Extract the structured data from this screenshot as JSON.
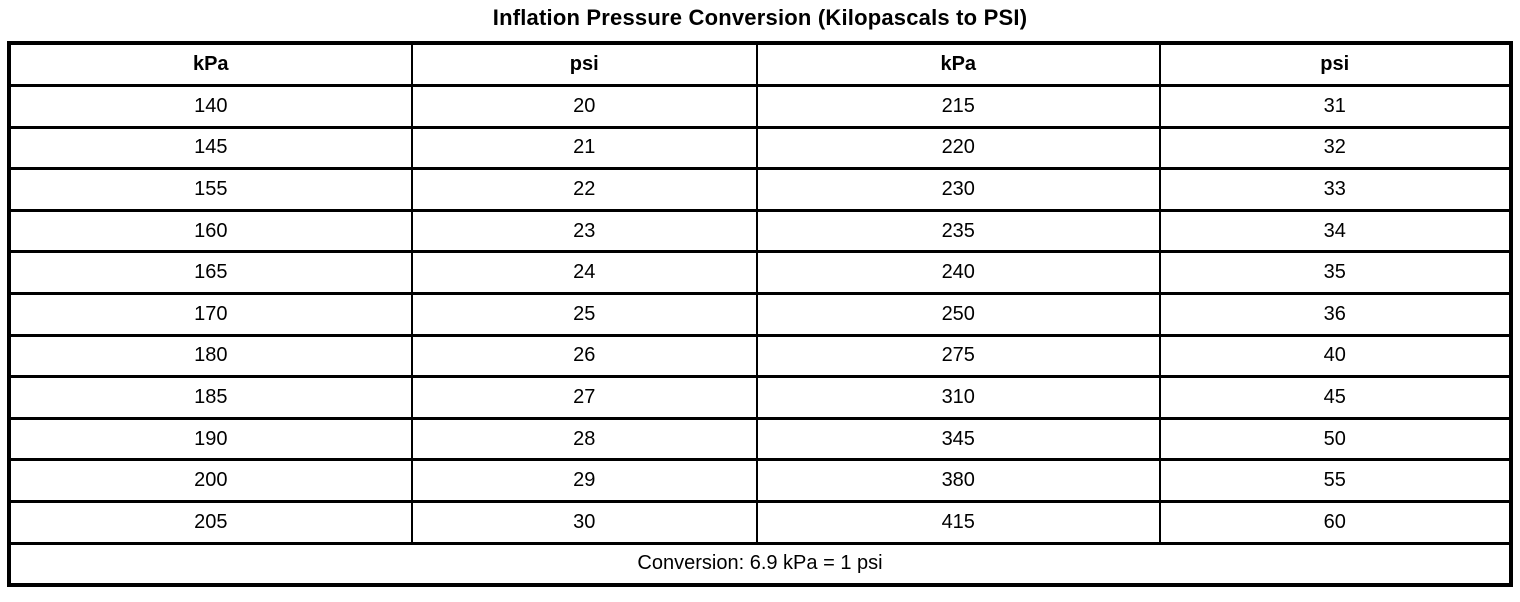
{
  "page": {
    "title": "Inflation Pressure Conversion (Kilopascals to PSI)"
  },
  "table": {
    "headers": [
      "kPa",
      "psi",
      "kPa",
      "psi"
    ],
    "rows": [
      [
        140,
        20,
        215,
        31
      ],
      [
        145,
        21,
        220,
        32
      ],
      [
        155,
        22,
        230,
        33
      ],
      [
        160,
        23,
        235,
        34
      ],
      [
        165,
        24,
        240,
        35
      ],
      [
        170,
        25,
        250,
        36
      ],
      [
        180,
        26,
        275,
        40
      ],
      [
        185,
        27,
        310,
        45
      ],
      [
        190,
        28,
        345,
        50
      ],
      [
        200,
        29,
        380,
        55
      ],
      [
        205,
        30,
        415,
        60
      ]
    ],
    "footer": "Conversion: 6.9 kPa = 1 psi"
  },
  "chart_data": {
    "type": "table",
    "title": "Inflation Pressure Conversion (Kilopascals to PSI)",
    "columns": [
      "kPa",
      "psi",
      "kPa",
      "psi"
    ],
    "rows": [
      [
        140,
        20,
        215,
        31
      ],
      [
        145,
        21,
        220,
        32
      ],
      [
        155,
        22,
        230,
        33
      ],
      [
        160,
        23,
        235,
        34
      ],
      [
        165,
        24,
        240,
        35
      ],
      [
        170,
        25,
        250,
        36
      ],
      [
        180,
        26,
        275,
        40
      ],
      [
        185,
        27,
        310,
        45
      ],
      [
        190,
        28,
        345,
        50
      ],
      [
        200,
        29,
        380,
        55
      ],
      [
        205,
        30,
        415,
        60
      ]
    ],
    "footer_note": "Conversion: 6.9 kPa = 1 psi"
  }
}
